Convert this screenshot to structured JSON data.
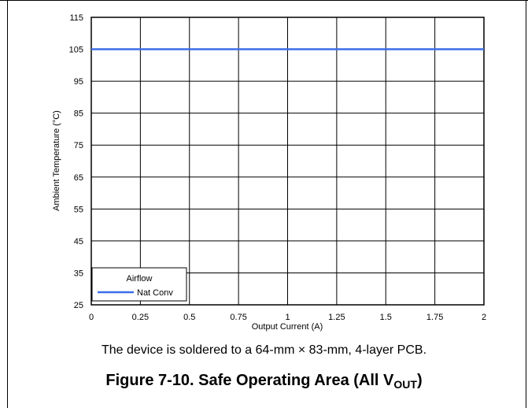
{
  "chart_data": {
    "type": "line",
    "xlabel": "Output Current (A)",
    "ylabel": "Ambient Temperature (°C)",
    "xlim": [
      0,
      2
    ],
    "ylim": [
      25,
      115
    ],
    "x_ticks": [
      "0",
      "0.25",
      "0.5",
      "0.75",
      "1",
      "1.25",
      "1.5",
      "1.75",
      "2"
    ],
    "y_ticks": [
      "115",
      "105",
      "95",
      "85",
      "75",
      "65",
      "55",
      "45",
      "35",
      "25"
    ],
    "grid": true,
    "legend": {
      "title": "Airflow",
      "placement": "bottom-left"
    },
    "series": [
      {
        "name": "Nat Conv",
        "color": "#3b6fe8",
        "x": [
          0,
          2
        ],
        "y": [
          105,
          105
        ]
      }
    ]
  },
  "note": "The device is soldered to a 64-mm × 83-mm, 4-layer PCB.",
  "caption": {
    "main": "Figure 7-10. Safe Operating Area (All V",
    "sub": "OUT",
    "end": ")"
  }
}
